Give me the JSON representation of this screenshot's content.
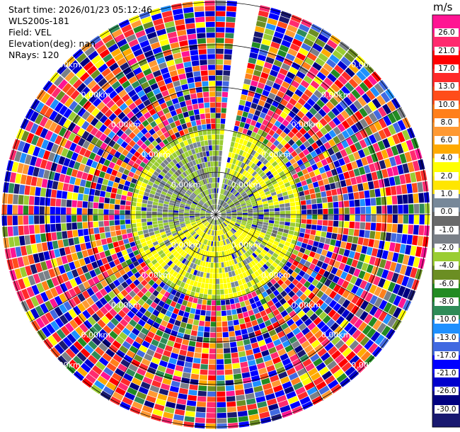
{
  "info": {
    "start_time": "Start time: 2026/01/23 05:12:46",
    "instrument": "WLS200s-181",
    "field": "Field: VEL",
    "elevation": "Elevation(deg): nan",
    "nrays": "NRays: 120"
  },
  "chart_data": {
    "type": "heatmap",
    "projection": "polar-ppi",
    "field": "VEL",
    "units": "m/s",
    "n_rays": 120,
    "range_rings_km": [
      1,
      2,
      3,
      4,
      5
    ],
    "range_ring_label": "0.00km",
    "colorbar": {
      "title": "m/s",
      "ticks": [
        "26.0",
        "21.0",
        "17.0",
        "13.0",
        "10.0",
        "8.0",
        "6.0",
        "4.0",
        "2.0",
        "1.0",
        "0.0",
        "-1.0",
        "-2.0",
        "-4.0",
        "-6.0",
        "-8.0",
        "-10.0",
        "-13.0",
        "-17.0",
        "-21.0",
        "-26.0",
        "-30.0"
      ],
      "colors": [
        "#ff1493",
        "#ff2a6f",
        "#ff0000",
        "#ff2a2a",
        "#ff4d1a",
        "#ff7f1a",
        "#ff9933",
        "#ffaa00",
        "#ffff00",
        "#ffe600",
        "#778899",
        "#696969",
        "#7a8088",
        "#9acd32",
        "#6b8e23",
        "#228b22",
        "#2e8b57",
        "#1e90ff",
        "#4169e1",
        "#0000ff",
        "#0000cd",
        "#000080",
        "#191970"
      ]
    }
  }
}
